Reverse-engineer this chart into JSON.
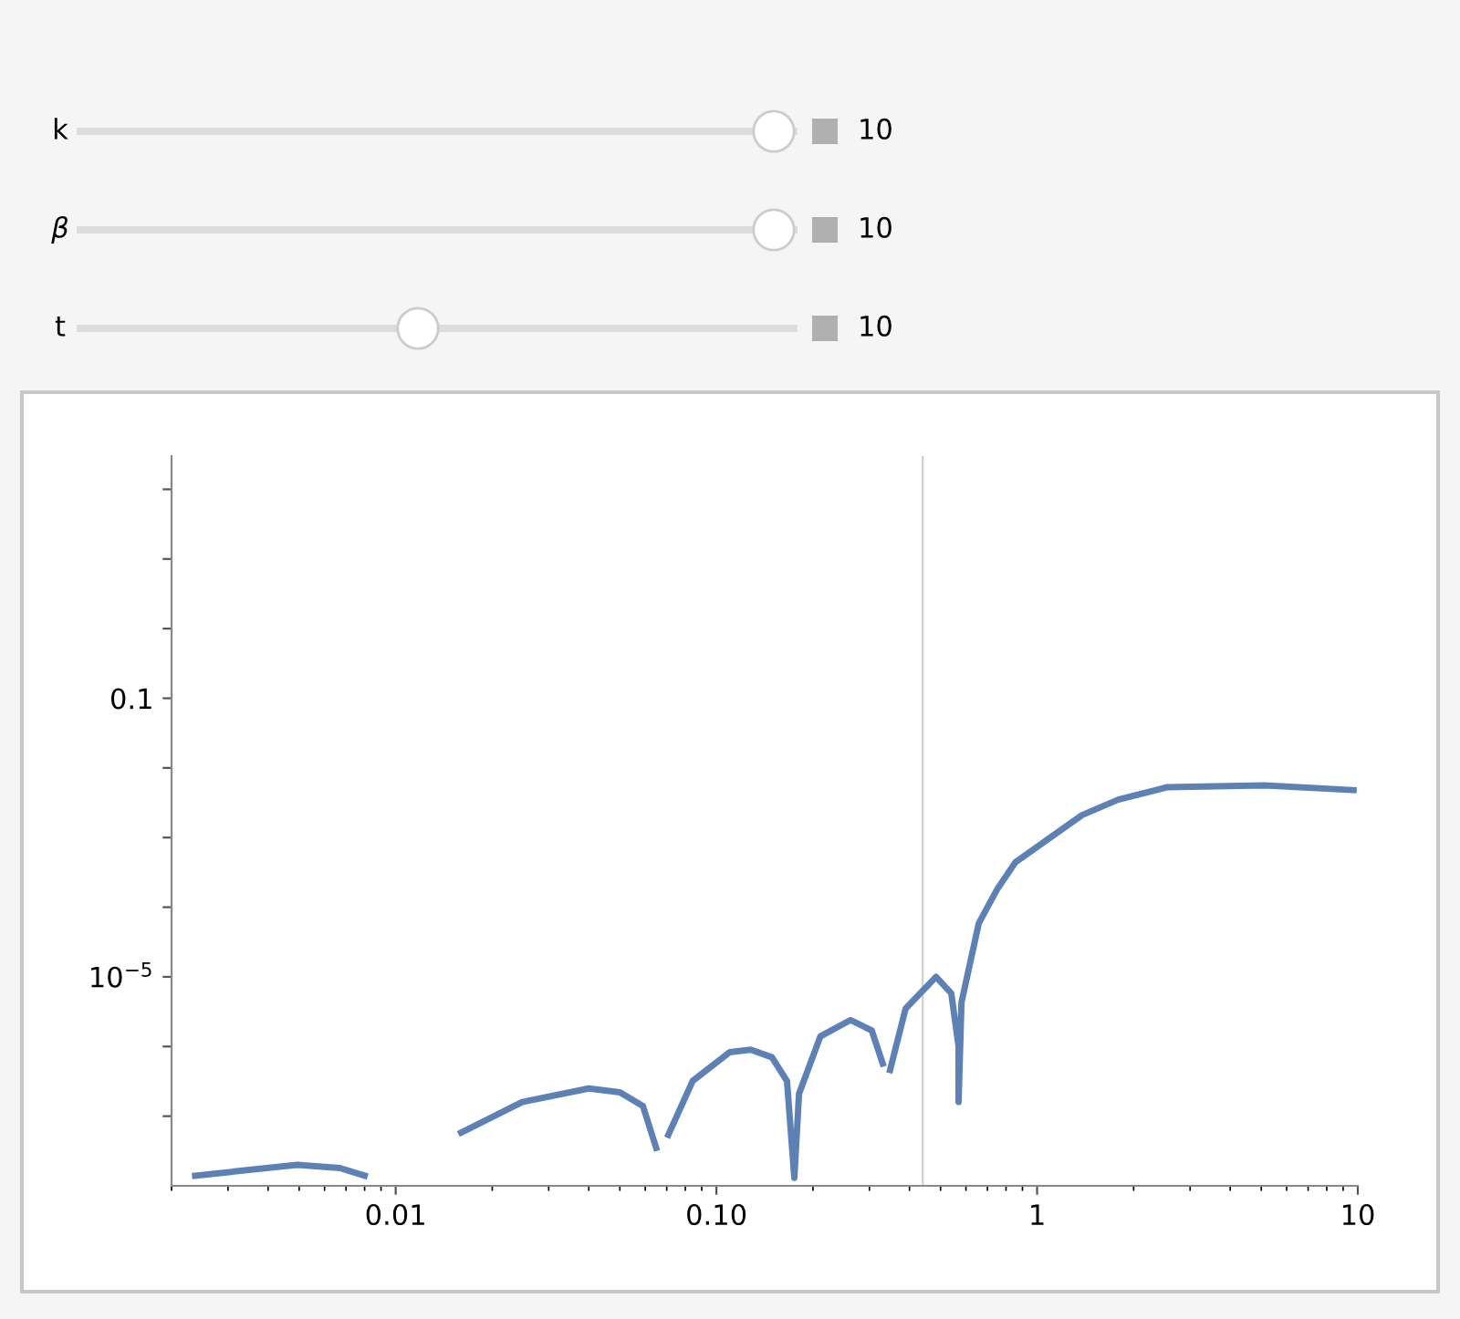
{
  "chart_data": {
    "type": "line",
    "log": "xy",
    "grid": false,
    "legend": false,
    "marker": "none",
    "line_style": "solid",
    "annotations": [
      "k",
      "10",
      "β",
      "10",
      "t",
      "10"
    ],
    "xlim": [
      0.002,
      10
    ],
    "ylim": [
      1e-08,
      300
    ],
    "xticks": [
      0.01,
      {
        "value": 0.1,
        "label": "0.10"
      },
      1,
      10
    ],
    "yticks": [
      {
        "value": 1e-07,
        "label": null
      },
      {
        "value": 1e-06,
        "label": null
      },
      {
        "value": 1e-05,
        "label": "10$^{−5}$"
      },
      {
        "value": 0.0001,
        "label": null
      },
      {
        "value": 0.001,
        "label": null
      },
      {
        "value": 0.01,
        "label": null
      },
      0.1,
      {
        "value": 1,
        "label": null
      },
      {
        "value": 10,
        "label": null
      },
      {
        "value": 100,
        "label": null
      }
    ],
    "ref_lines": [
      {
        "axis": "x",
        "value": 0.44,
        "color": "#d0d0d0"
      }
    ],
    "series": [
      {
        "color": "#5e81b5",
        "x": [
          0.00237,
          0.00493,
          0.0067,
          0.008,
          0.0089,
          0.01,
          0.0117,
          0.016,
          0.0248,
          0.04,
          0.05,
          0.059,
          0.0649,
          0.0668,
          0.0708,
          0.0843,
          0.11,
          0.128,
          0.149,
          0.166,
          0.175,
          0.181,
          0.211,
          0.262,
          0.305,
          0.33,
          0.338,
          0.348,
          0.389,
          0.484,
          0.54,
          0.569,
          0.569,
          0.581,
          0.658,
          0.75,
          0.855,
          1.38,
          1.79,
          2.55,
          5.12,
          9.7
        ],
        "values": [
          1.4e-08,
          2e-08,
          1.8e-08,
          1.4e-08,
          null,
          null,
          null,
          5.8e-08,
          1.6e-07,
          2.5e-07,
          2.2e-07,
          1.4e-07,
          3.5e-08,
          null,
          5.4e-08,
          3.2e-07,
          8.3e-07,
          9e-07,
          7e-07,
          3.2e-07,
          1.3e-08,
          2.1e-07,
          1.4e-06,
          2.4e-06,
          1.7e-06,
          5.7e-07,
          null,
          4.6e-07,
          3.5e-06,
          1e-05,
          5.8e-06,
          1e-06,
          1.6e-07,
          4.3e-06,
          5.9e-05,
          0.00018,
          0.00044,
          0.0021,
          0.0035,
          0.0053,
          0.0056,
          0.0048
        ]
      }
    ]
  }
}
